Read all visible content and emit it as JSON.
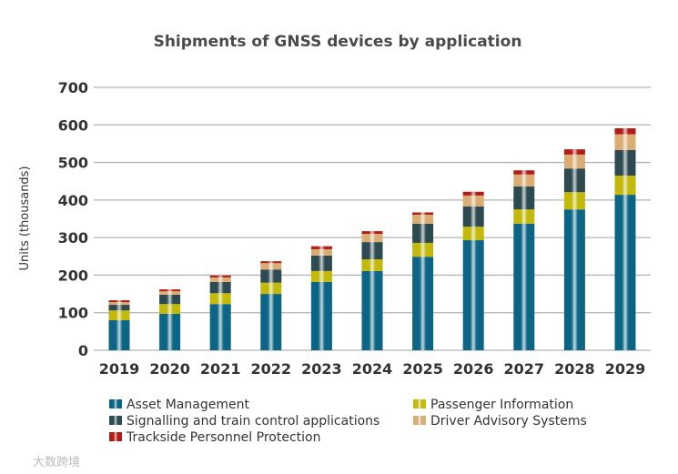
{
  "chart_data": {
    "type": "bar",
    "stacked": true,
    "title": "Shipments of GNSS devices by application",
    "xlabel": "",
    "ylabel": "Units (thousands)",
    "ylim": [
      0,
      700
    ],
    "yticks": [
      0,
      100,
      200,
      300,
      400,
      500,
      600,
      700
    ],
    "grid": true,
    "legend_position": "bottom",
    "categories": [
      "2019",
      "2020",
      "2021",
      "2022",
      "2023",
      "2024",
      "2025",
      "2026",
      "2027",
      "2028",
      "2029"
    ],
    "series": [
      {
        "name": "Asset Management",
        "color": "#0d6585",
        "values": [
          80,
          97,
          123,
          150,
          182,
          211,
          249,
          293,
          337,
          375,
          414
        ]
      },
      {
        "name": "Passenger Information",
        "color": "#c2b90a",
        "values": [
          26,
          26,
          29,
          30,
          29,
          31,
          37,
          36,
          38,
          46,
          51
        ]
      },
      {
        "name": "Signalling and train control applications",
        "color": "#2c4a4f",
        "values": [
          15,
          25,
          30,
          35,
          41,
          46,
          51,
          54,
          61,
          63,
          68
        ]
      },
      {
        "name": "Driver Advisory Systems",
        "color": "#d9ad74",
        "values": [
          7,
          9,
          12,
          17,
          17,
          22,
          24,
          29,
          32,
          37,
          42
        ]
      },
      {
        "name": "Trackside Personnel Protection",
        "color": "#b01c16",
        "values": [
          5,
          5,
          5,
          5,
          8,
          7,
          6,
          10,
          11,
          14,
          16
        ]
      }
    ]
  },
  "watermark": "大数跨境"
}
